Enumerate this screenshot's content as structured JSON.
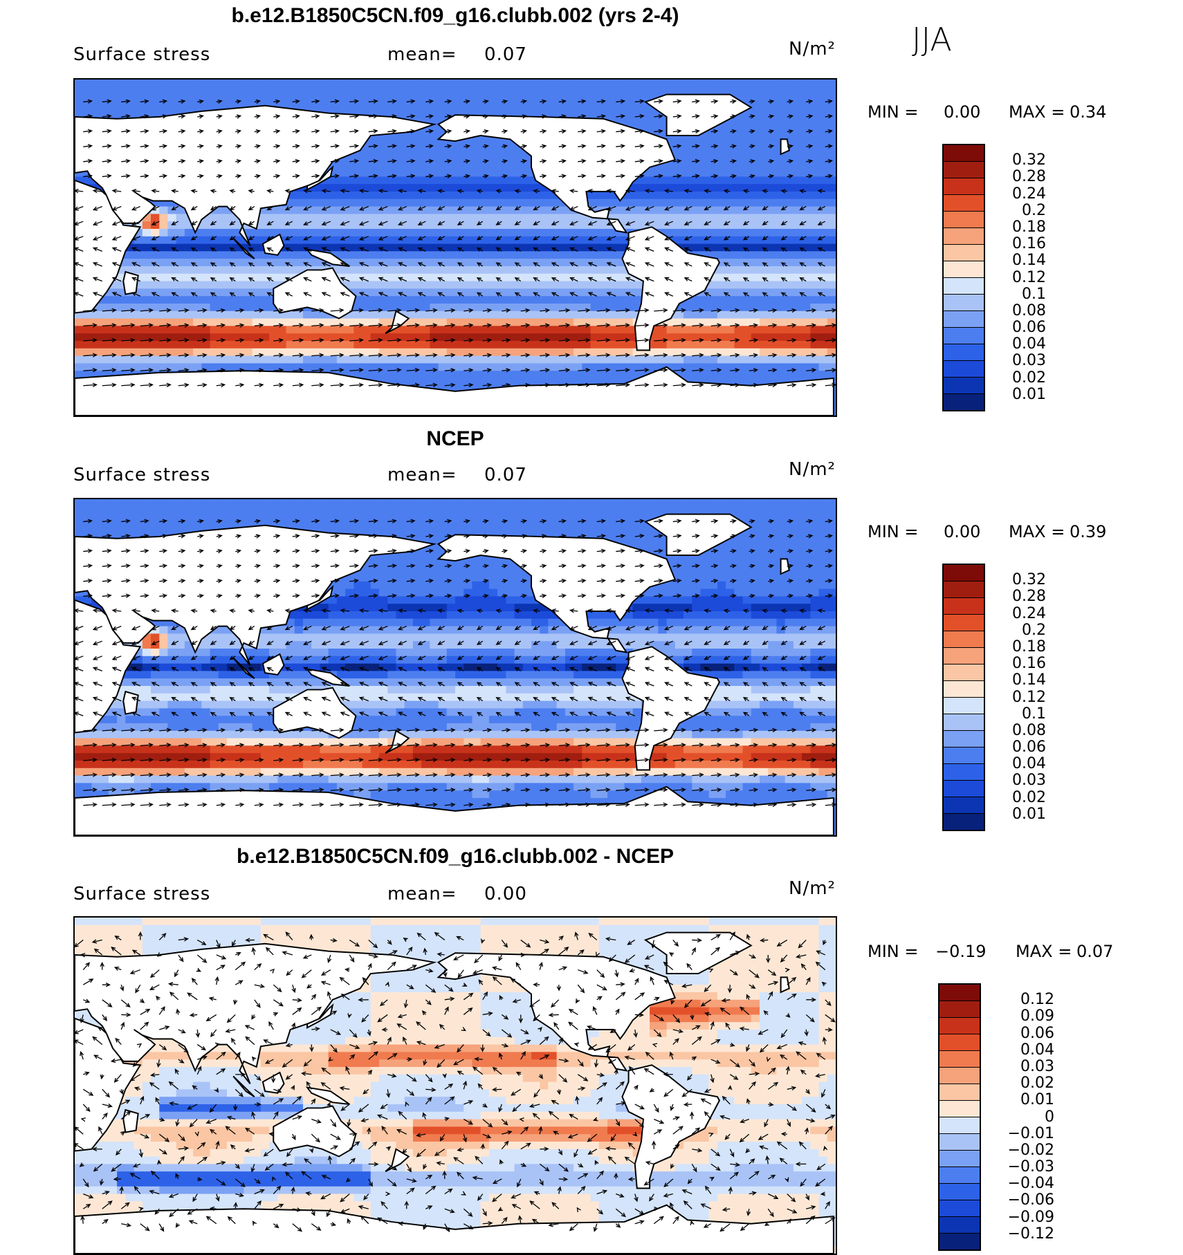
{
  "season": "JJA",
  "units_html": "N/m²",
  "palette_pos": [
    "#08217a",
    "#0c35b3",
    "#1c4ad9",
    "#2d62e8",
    "#4d7ef0",
    "#7ba1f4",
    "#a9c3f7",
    "#d4e4fb",
    "#fde7d4",
    "#fbc6a4",
    "#f6a27b",
    "#f07b4f",
    "#e2502a",
    "#c8321a",
    "#a01e10",
    "#7d0b07"
  ],
  "palette_diff": [
    "#08217a",
    "#0c35b3",
    "#1c4ad9",
    "#2d62e8",
    "#4d7ef0",
    "#7ba1f4",
    "#a9c3f7",
    "#d4e4fb",
    "#fde7d4",
    "#fbc6a4",
    "#f6a27b",
    "#f07b4f",
    "#e2502a",
    "#c8321a",
    "#a01e10",
    "#7d0b07"
  ],
  "panels": [
    {
      "title": "b.e12.B1850C5CN.f09_g16.clubb.002 (yrs 2-4)",
      "var_label": "Surface stress",
      "mean_label": "mean=",
      "mean_value": "0.07",
      "units": "N/m²",
      "min_label": "MIN =",
      "min_value": "0.00",
      "max_label": "MAX =",
      "max_value": "0.34",
      "levels": [
        "0.32",
        "0.28",
        "0.24",
        "0.2",
        "0.18",
        "0.16",
        "0.14",
        "0.12",
        "0.1",
        "0.08",
        "0.06",
        "0.04",
        "0.03",
        "0.02",
        "0.01"
      ]
    },
    {
      "title": "NCEP",
      "var_label": "Surface stress",
      "mean_label": "mean=",
      "mean_value": "0.07",
      "units": "N/m²",
      "min_label": "MIN =",
      "min_value": "0.00",
      "max_label": "MAX =",
      "max_value": "0.39",
      "levels": [
        "0.32",
        "0.28",
        "0.24",
        "0.2",
        "0.18",
        "0.16",
        "0.14",
        "0.12",
        "0.1",
        "0.08",
        "0.06",
        "0.04",
        "0.03",
        "0.02",
        "0.01"
      ]
    },
    {
      "title": "b.e12.B1850C5CN.f09_g16.clubb.002 - NCEP",
      "var_label": "Surface stress",
      "mean_label": "mean=",
      "mean_value": "0.00",
      "units": "N/m²",
      "min_label": "MIN =",
      "min_value": "−0.19",
      "max_label": "MAX =",
      "max_value": "0.07",
      "levels": [
        "0.12",
        "0.09",
        "0.06",
        "0.04",
        "0.03",
        "0.02",
        "0.01",
        "0",
        "−0.01",
        "−0.02",
        "−0.03",
        "−0.04",
        "−0.06",
        "−0.09",
        "−0.12"
      ]
    }
  ]
}
